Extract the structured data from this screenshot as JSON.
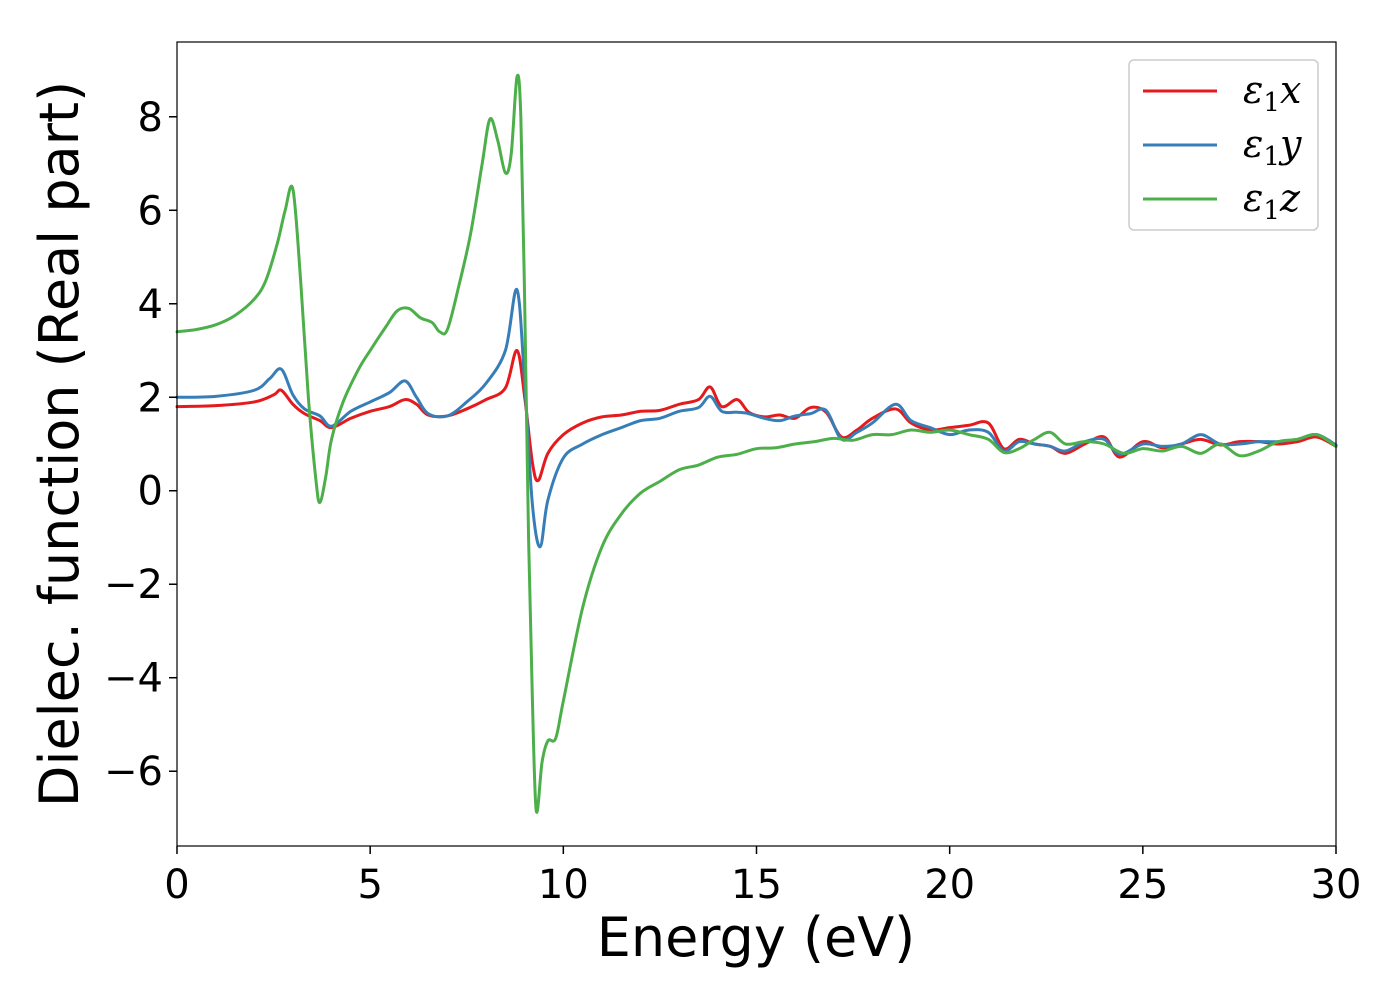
{
  "chart_data": {
    "type": "line",
    "title": "",
    "xlabel": "Energy (eV)",
    "ylabel": "Dielec. function (Real part)",
    "xlim": [
      0,
      30
    ],
    "ylim": [
      -7.6,
      9.6
    ],
    "xticks": [
      0,
      5,
      10,
      15,
      20,
      25,
      30
    ],
    "xtick_labels": [
      "0",
      "5",
      "10",
      "15",
      "20",
      "25",
      "30"
    ],
    "yticks": [
      -6,
      -4,
      -2,
      0,
      2,
      4,
      6,
      8
    ],
    "ytick_labels": [
      "−6",
      "−4",
      "−2",
      "0",
      "2",
      "4",
      "6",
      "8"
    ],
    "grid": false,
    "legend": "top-right",
    "series": [
      {
        "name": "ε₁x",
        "label_base": "ε",
        "label_sub": "1",
        "label_var": "x",
        "color": "#e41a1c",
        "x": [
          0,
          1,
          2,
          2.5,
          2.7,
          3.0,
          3.3,
          3.7,
          4.0,
          4.5,
          5.0,
          5.5,
          5.9,
          6.2,
          6.5,
          7.0,
          7.5,
          8.0,
          8.5,
          8.8,
          9.0,
          9.2,
          9.35,
          9.6,
          10.0,
          10.5,
          11.0,
          11.5,
          12.0,
          12.5,
          13.0,
          13.5,
          13.8,
          14.1,
          14.5,
          14.8,
          15.2,
          15.6,
          16.0,
          16.4,
          16.8,
          17.2,
          17.6,
          18.0,
          18.6,
          19.0,
          19.5,
          20.0,
          20.5,
          21.0,
          21.4,
          21.8,
          22.2,
          22.6,
          23.0,
          23.5,
          24.0,
          24.4,
          25.0,
          25.5,
          26.0,
          26.5,
          27.0,
          27.5,
          28.0,
          28.5,
          29.0,
          29.5,
          30.0
        ],
        "values": [
          1.8,
          1.82,
          1.9,
          2.05,
          2.15,
          1.85,
          1.65,
          1.5,
          1.35,
          1.55,
          1.7,
          1.8,
          1.95,
          1.85,
          1.62,
          1.6,
          1.75,
          1.95,
          2.2,
          3.0,
          2.0,
          0.6,
          0.22,
          0.8,
          1.2,
          1.45,
          1.58,
          1.62,
          1.7,
          1.72,
          1.85,
          1.95,
          2.22,
          1.8,
          1.95,
          1.68,
          1.58,
          1.62,
          1.55,
          1.78,
          1.68,
          1.15,
          1.3,
          1.55,
          1.75,
          1.45,
          1.3,
          1.35,
          1.4,
          1.45,
          0.9,
          1.1,
          1.0,
          0.95,
          0.8,
          1.0,
          1.15,
          0.72,
          1.05,
          0.92,
          1.0,
          1.1,
          0.98,
          1.05,
          1.05,
          1.0,
          1.05,
          1.15,
          0.95
        ]
      },
      {
        "name": "ε₁y",
        "label_base": "ε",
        "label_sub": "1",
        "label_var": "y",
        "color": "#377eb8",
        "x": [
          0,
          1,
          2,
          2.4,
          2.7,
          3.0,
          3.3,
          3.7,
          4.0,
          4.5,
          5.0,
          5.5,
          5.9,
          6.2,
          6.5,
          7.0,
          7.5,
          8.0,
          8.5,
          8.8,
          9.0,
          9.2,
          9.4,
          9.6,
          10.0,
          10.5,
          11.0,
          11.5,
          12.0,
          12.5,
          13.0,
          13.5,
          13.8,
          14.1,
          14.5,
          14.8,
          15.2,
          15.6,
          16.0,
          16.4,
          16.8,
          17.2,
          17.6,
          18.0,
          18.6,
          19.0,
          19.5,
          20.0,
          20.5,
          21.0,
          21.4,
          21.8,
          22.2,
          22.6,
          23.0,
          23.5,
          24.0,
          24.4,
          25.0,
          25.5,
          26.0,
          26.5,
          27.0,
          27.5,
          28.0,
          28.5,
          29.0,
          29.5,
          30.0
        ],
        "values": [
          2.0,
          2.02,
          2.15,
          2.4,
          2.6,
          2.05,
          1.75,
          1.6,
          1.38,
          1.7,
          1.9,
          2.1,
          2.35,
          2.0,
          1.65,
          1.6,
          1.9,
          2.3,
          3.0,
          4.3,
          2.3,
          -0.3,
          -1.2,
          -0.2,
          0.7,
          1.0,
          1.2,
          1.35,
          1.5,
          1.55,
          1.7,
          1.78,
          2.02,
          1.7,
          1.68,
          1.65,
          1.55,
          1.5,
          1.6,
          1.65,
          1.72,
          1.1,
          1.25,
          1.45,
          1.85,
          1.5,
          1.35,
          1.2,
          1.3,
          1.25,
          0.85,
          1.05,
          1.0,
          0.95,
          0.85,
          1.05,
          1.1,
          0.78,
          1.0,
          0.95,
          1.0,
          1.2,
          1.0,
          1.0,
          1.05,
          1.05,
          1.1,
          1.2,
          0.98
        ]
      },
      {
        "name": "ε₁z",
        "label_base": "ε",
        "label_sub": "1",
        "label_var": "z",
        "color": "#4daf4a",
        "x": [
          0,
          0.5,
          1.0,
          1.5,
          2.0,
          2.3,
          2.6,
          2.8,
          3.0,
          3.2,
          3.4,
          3.6,
          3.7,
          3.85,
          4.0,
          4.3,
          4.7,
          5.0,
          5.4,
          5.7,
          6.0,
          6.3,
          6.6,
          6.8,
          7.0,
          7.3,
          7.6,
          7.9,
          8.1,
          8.3,
          8.5,
          8.65,
          8.8,
          8.9,
          9.0,
          9.1,
          9.2,
          9.3,
          9.45,
          9.6,
          9.8,
          10.0,
          10.5,
          11.0,
          11.5,
          12.0,
          12.5,
          13.0,
          13.5,
          14.0,
          14.5,
          15.0,
          15.5,
          16.0,
          16.5,
          17.0,
          17.5,
          18.0,
          18.5,
          19.0,
          19.5,
          20.0,
          20.5,
          21.0,
          21.4,
          21.8,
          22.2,
          22.6,
          23.0,
          23.5,
          24.0,
          24.5,
          25.0,
          25.5,
          26.0,
          26.5,
          27.0,
          27.5,
          28.0,
          28.5,
          29.0,
          29.5,
          30.0
        ],
        "values": [
          3.4,
          3.45,
          3.55,
          3.75,
          4.1,
          4.5,
          5.3,
          6.0,
          6.45,
          4.5,
          2.0,
          0.2,
          -0.25,
          0.3,
          1.1,
          1.9,
          2.6,
          3.0,
          3.5,
          3.85,
          3.9,
          3.7,
          3.6,
          3.4,
          3.45,
          4.4,
          5.5,
          7.0,
          7.95,
          7.5,
          6.8,
          7.2,
          8.85,
          8.0,
          4.0,
          -1.0,
          -4.5,
          -6.85,
          -5.8,
          -5.35,
          -5.3,
          -4.5,
          -2.5,
          -1.2,
          -0.5,
          -0.05,
          0.2,
          0.45,
          0.55,
          0.72,
          0.78,
          0.9,
          0.92,
          1.0,
          1.05,
          1.12,
          1.08,
          1.2,
          1.2,
          1.3,
          1.25,
          1.3,
          1.2,
          1.1,
          0.82,
          0.9,
          1.1,
          1.25,
          1.0,
          1.05,
          1.0,
          0.8,
          0.9,
          0.85,
          0.95,
          0.8,
          1.0,
          0.75,
          0.85,
          1.05,
          1.1,
          1.2,
          0.95
        ]
      }
    ]
  }
}
